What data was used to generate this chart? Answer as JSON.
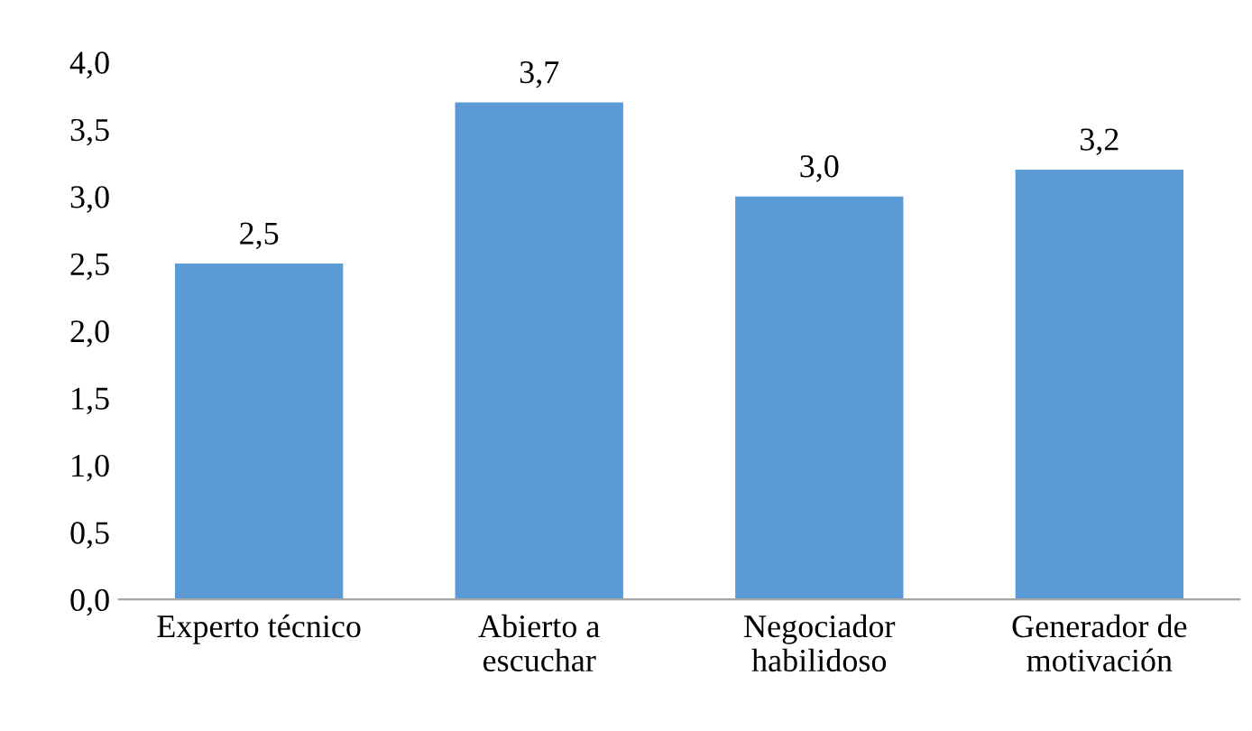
{
  "chart_data": {
    "type": "bar",
    "categories": [
      "Experto técnico",
      "Abierto a\nescuchar",
      "Negociador\nhabilidoso",
      "Generador de\nmotivación"
    ],
    "values": [
      2.5,
      3.7,
      3.0,
      3.2
    ],
    "value_labels": [
      "2,5",
      "3,7",
      "3,0",
      "3,2"
    ],
    "color": "#5b9bd5",
    "ylim": [
      0,
      4
    ],
    "yticks": [
      {
        "value": 0,
        "label": "0,0"
      },
      {
        "value": 0.5,
        "label": "0,5"
      },
      {
        "value": 1,
        "label": "1,0"
      },
      {
        "value": 1.5,
        "label": "1,5"
      },
      {
        "value": 2,
        "label": "2,0"
      },
      {
        "value": 2.5,
        "label": "2,5"
      },
      {
        "value": 3,
        "label": "3,0"
      },
      {
        "value": 3.5,
        "label": "3,5"
      },
      {
        "value": 4,
        "label": "4,0"
      }
    ],
    "grid": false,
    "legend": false
  }
}
